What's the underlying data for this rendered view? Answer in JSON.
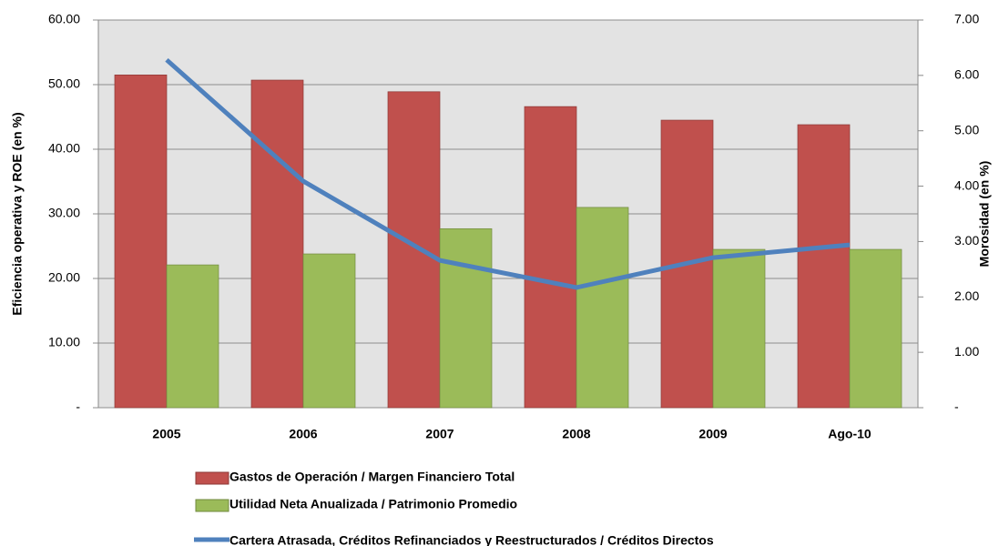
{
  "chart_data": {
    "type": "bar",
    "categories": [
      "2005",
      "2006",
      "2007",
      "2008",
      "2009",
      "Ago-10"
    ],
    "series": [
      {
        "name": "Gastos de Operación / Margen Financiero Total",
        "type": "bar",
        "color": "#c0504d",
        "values": [
          51.5,
          50.7,
          48.9,
          46.6,
          44.5,
          43.8
        ]
      },
      {
        "name": "Utilidad Neta Anualizada / Patrimonio Promedio",
        "type": "bar",
        "color": "#9bbb59",
        "values": [
          22.1,
          23.8,
          27.7,
          31.0,
          24.5,
          24.5
        ]
      },
      {
        "name": "Cartera Atrasada, Créditos Refinanciados y Reestructurados / Créditos Directos",
        "type": "line",
        "axis": "y2",
        "color": "#4f81bd",
        "values": [
          6.28,
          4.09,
          2.66,
          2.17,
          2.71,
          2.94
        ]
      }
    ],
    "ylabel": "Eficiencia operativa y ROE (en %)",
    "y2label": "Morosidad (en %)",
    "ylim": [
      0,
      60
    ],
    "yticks": [
      {
        "value": 0,
        "label": "-"
      },
      {
        "value": 10,
        "label": "10.00"
      },
      {
        "value": 20,
        "label": "20.00"
      },
      {
        "value": 30,
        "label": "30.00"
      },
      {
        "value": 40,
        "label": "40.00"
      },
      {
        "value": 50,
        "label": "50.00"
      },
      {
        "value": 60,
        "label": "60.00"
      }
    ],
    "y2lim": [
      0,
      7
    ],
    "y2ticks": [
      {
        "value": 0,
        "label": "-"
      },
      {
        "value": 1,
        "label": "1.00"
      },
      {
        "value": 2,
        "label": "2.00"
      },
      {
        "value": 3,
        "label": "3.00"
      },
      {
        "value": 4,
        "label": "4.00"
      },
      {
        "value": 5,
        "label": "5.00"
      },
      {
        "value": 6,
        "label": "6.00"
      },
      {
        "value": 7,
        "label": "7.00"
      }
    ],
    "grid": true
  }
}
